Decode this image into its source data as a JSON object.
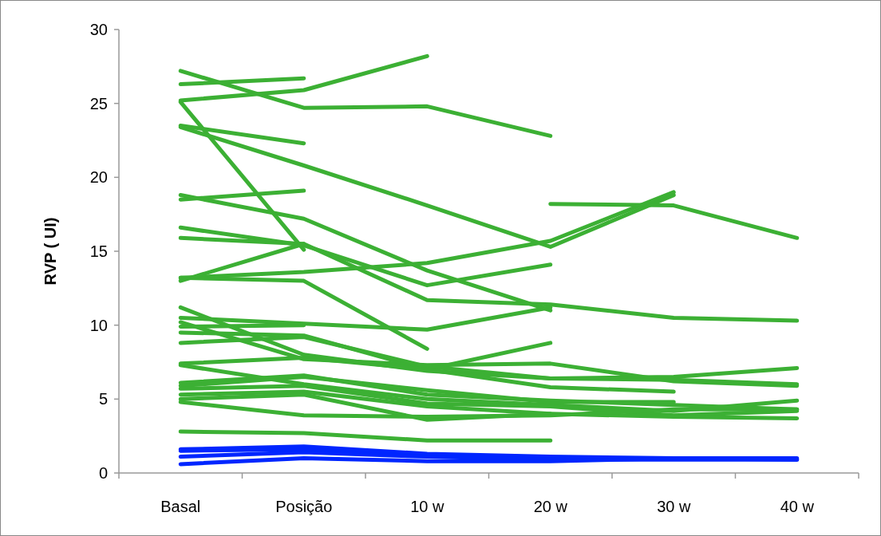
{
  "chart_data": {
    "type": "line",
    "ylabel": "RVP ( UI)",
    "categories": [
      "Basal",
      "Posição",
      "10 w",
      "20 w",
      "30 w",
      "40 w"
    ],
    "ylim": [
      0,
      30
    ],
    "yticks": [
      0,
      5,
      10,
      15,
      20,
      25,
      30
    ],
    "grid": false,
    "series": [
      {
        "color": "#3cb034",
        "values": [
          27.2,
          24.7,
          24.8,
          22.8,
          null,
          null
        ]
      },
      {
        "color": "#3cb034",
        "values": [
          26.3,
          26.7,
          null,
          null,
          null,
          null
        ]
      },
      {
        "color": "#3cb034",
        "values": [
          25.2,
          25.9,
          28.2,
          null,
          null,
          null
        ]
      },
      {
        "color": "#3cb034",
        "values": [
          25.1,
          15.1,
          null,
          null,
          null,
          null
        ]
      },
      {
        "color": "#3cb034",
        "values": [
          23.5,
          22.3,
          null,
          null,
          null,
          null
        ]
      },
      {
        "color": "#3cb034",
        "values": [
          23.4,
          20.8,
          18.1,
          15.3,
          18.8,
          null
        ]
      },
      {
        "color": "#3cb034",
        "values": [
          null,
          null,
          null,
          18.2,
          18.1,
          15.9
        ]
      },
      {
        "color": "#3cb034",
        "values": [
          18.8,
          17.2,
          13.7,
          11.0,
          null,
          null
        ]
      },
      {
        "color": "#3cb034",
        "values": [
          18.5,
          19.1,
          null,
          null,
          null,
          null
        ]
      },
      {
        "color": "#3cb034",
        "values": [
          16.6,
          15.4,
          12.7,
          14.1,
          null,
          null
        ]
      },
      {
        "color": "#3cb034",
        "values": [
          15.9,
          15.5,
          11.7,
          11.4,
          10.5,
          10.3
        ]
      },
      {
        "color": "#3cb034",
        "values": [
          13.0,
          15.5,
          null,
          null,
          null,
          null
        ]
      },
      {
        "color": "#3cb034",
        "values": [
          13.2,
          13.6,
          14.2,
          15.7,
          19.0,
          null
        ]
      },
      {
        "color": "#3cb034",
        "values": [
          13.2,
          13.0,
          8.4,
          null,
          null,
          null
        ]
      },
      {
        "color": "#3cb034",
        "values": [
          11.2,
          8.0,
          6.9,
          6.4,
          6.5,
          7.1
        ]
      },
      {
        "color": "#3cb034",
        "values": [
          10.5,
          10.1,
          9.7,
          11.2,
          null,
          null
        ]
      },
      {
        "color": "#3cb034",
        "values": [
          10.2,
          7.7,
          7.3,
          7.4,
          6.2,
          5.9
        ]
      },
      {
        "color": "#3cb034",
        "values": [
          9.9,
          10.0,
          null,
          null,
          null,
          null
        ]
      },
      {
        "color": "#3cb034",
        "values": [
          9.5,
          9.3,
          7.0,
          8.8,
          null,
          null
        ]
      },
      {
        "color": "#3cb034",
        "values": [
          8.8,
          9.2,
          7.2,
          6.4,
          6.3,
          6.0
        ]
      },
      {
        "color": "#3cb034",
        "values": [
          7.4,
          7.8,
          7.0,
          5.8,
          5.5,
          null
        ]
      },
      {
        "color": "#3cb034",
        "values": [
          7.3,
          6.0,
          5.0,
          4.6,
          4.2,
          4.9
        ]
      },
      {
        "color": "#3cb034",
        "values": [
          6.1,
          6.6,
          5.3,
          4.9,
          4.6,
          4.3
        ]
      },
      {
        "color": "#3cb034",
        "values": [
          5.9,
          6.5,
          5.6,
          4.8,
          4.8,
          null
        ]
      },
      {
        "color": "#3cb034",
        "values": [
          5.7,
          5.9,
          4.7,
          4.5,
          3.9,
          4.2
        ]
      },
      {
        "color": "#3cb034",
        "values": [
          5.3,
          5.5,
          4.5,
          4.0,
          null,
          null
        ]
      },
      {
        "color": "#3cb034",
        "values": [
          5.0,
          5.3,
          3.6,
          4.0,
          3.8,
          3.7
        ]
      },
      {
        "color": "#3cb034",
        "values": [
          4.8,
          3.9,
          3.8,
          3.9,
          4.3,
          4.3
        ]
      },
      {
        "color": "#3cb034",
        "values": [
          2.8,
          2.7,
          2.2,
          2.2,
          null,
          null
        ]
      },
      {
        "color": "#0026ff",
        "values": [
          1.6,
          1.8,
          1.3,
          1.1,
          1.0,
          0.9
        ]
      },
      {
        "color": "#0026ff",
        "values": [
          1.5,
          1.6,
          1.2,
          1.0,
          null,
          null
        ]
      },
      {
        "color": "#0026ff",
        "values": [
          1.1,
          1.4,
          1.1,
          0.9,
          0.9,
          0.9
        ]
      },
      {
        "color": "#0026ff",
        "values": [
          0.6,
          1.0,
          0.8,
          0.8,
          1.0,
          1.0
        ]
      }
    ]
  }
}
